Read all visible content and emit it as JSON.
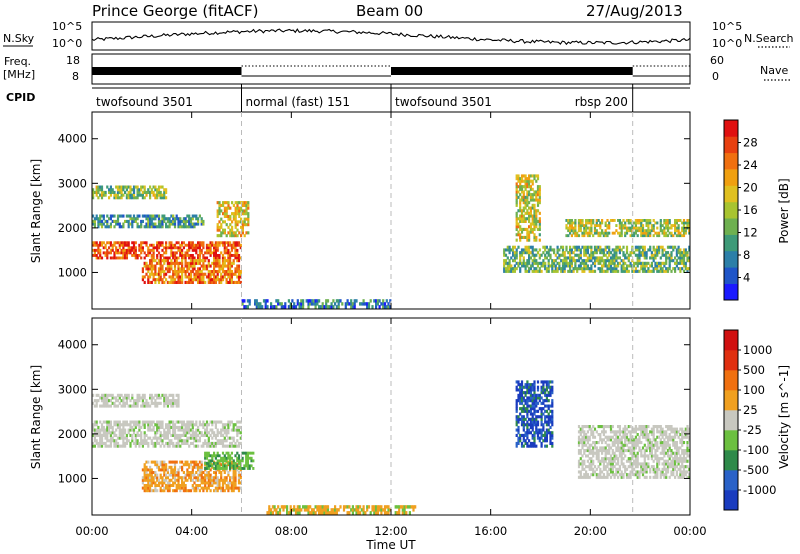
{
  "header": {
    "station": "Prince George (fitACF)",
    "beam": "Beam 00",
    "date": "27/Aug/2013"
  },
  "left_labels": {
    "nsky": "N.Sky",
    "freq": "Freq.",
    "freq_unit": "[MHz]",
    "cpid": "CPID"
  },
  "right_labels": {
    "nsearch": "N.Search",
    "nave": "Nave"
  },
  "nsky_ticks": {
    "left_top": "10^5",
    "left_bottom": "10^0",
    "right_top": "10^5",
    "right_bottom": "10^0"
  },
  "freq_ticks": {
    "left_top": "18",
    "left_bottom": "8",
    "right_top": "60",
    "right_bottom": "0"
  },
  "cpid_segments": [
    {
      "label": "twofsound 3501",
      "start": 0.0,
      "end": 6.0
    },
    {
      "label": "normal (fast) 151",
      "start": 6.0,
      "end": 12.0
    },
    {
      "label": "twofsound 3501",
      "start": 12.0,
      "end": 21.7
    },
    {
      "label": "rbsp 200",
      "start": 21.7,
      "end": 24.0
    }
  ],
  "chart_data": [
    {
      "type": "heatmap",
      "name": "power",
      "ylabel": "Slant Range [km]",
      "yticks": [
        1000,
        2000,
        3000,
        4000
      ],
      "ylim": [
        180,
        4600
      ],
      "xlim": [
        0,
        24
      ],
      "colorbar": {
        "label": "Power [dB]",
        "ticks": [
          "4",
          "8",
          "12",
          "16",
          "20",
          "24",
          "28"
        ],
        "colors": [
          "#1a1aff",
          "#1f55c8",
          "#2c7fa8",
          "#3e9a78",
          "#6eb050",
          "#a8c430",
          "#e0c020",
          "#f0a010",
          "#f07010",
          "#e84010",
          "#e01010"
        ]
      },
      "echo_bands": [
        {
          "t0": 0.0,
          "t1": 3.0,
          "r0": 2650,
          "r1": 2950,
          "level": 0.45
        },
        {
          "t0": 0.0,
          "t1": 4.5,
          "r0": 2000,
          "r1": 2300,
          "level": 0.3
        },
        {
          "t0": 0.0,
          "t1": 6.0,
          "r0": 1300,
          "r1": 1700,
          "level": 0.85
        },
        {
          "t0": 2.0,
          "t1": 6.0,
          "r0": 750,
          "r1": 1300,
          "level": 0.75
        },
        {
          "t0": 5.0,
          "t1": 6.3,
          "r0": 1800,
          "r1": 2600,
          "level": 0.6
        },
        {
          "t0": 17.0,
          "t1": 18.0,
          "r0": 1700,
          "r1": 3200,
          "level": 0.55
        },
        {
          "t0": 16.5,
          "t1": 24.0,
          "r0": 1000,
          "r1": 1600,
          "level": 0.4
        },
        {
          "t0": 19.0,
          "t1": 24.0,
          "r0": 1800,
          "r1": 2200,
          "level": 0.5
        },
        {
          "t0": 6.0,
          "t1": 12.0,
          "r0": 200,
          "r1": 400,
          "level": 0.25
        }
      ]
    },
    {
      "type": "heatmap",
      "name": "velocity",
      "ylabel": "Slant Range [km]",
      "xlabel": "Time UT",
      "xticks": [
        "00:00",
        "04:00",
        "08:00",
        "12:00",
        "16:00",
        "20:00",
        "00:00"
      ],
      "yticks": [
        1000,
        2000,
        3000,
        4000
      ],
      "ylim": [
        180,
        4600
      ],
      "xlim": [
        0,
        24
      ],
      "colorbar": {
        "label": "Velocity [m s^-1]",
        "ticks": [
          "1000",
          "500",
          "100",
          "25",
          "-25",
          "-100",
          "-500",
          "-1000"
        ],
        "colors": [
          "#1a3cbf",
          "#2a62c8",
          "#2e8a4a",
          "#6cc040",
          "#c8c8c0",
          "#f0a020",
          "#f07010",
          "#e03010",
          "#d01010"
        ]
      },
      "echo_bands": [
        {
          "t0": 0.0,
          "t1": 3.5,
          "r0": 2600,
          "r1": 2900,
          "kind": "ground"
        },
        {
          "t0": 0.0,
          "t1": 6.0,
          "r0": 1700,
          "r1": 2300,
          "kind": "ground"
        },
        {
          "t0": 2.0,
          "t1": 6.0,
          "r0": 700,
          "r1": 1400,
          "kind": "neg"
        },
        {
          "t0": 4.5,
          "t1": 6.5,
          "r0": 1200,
          "r1": 1600,
          "kind": "pos"
        },
        {
          "t0": 17.0,
          "t1": 18.5,
          "r0": 1700,
          "r1": 3200,
          "kind": "pos_strong"
        },
        {
          "t0": 19.5,
          "t1": 24.0,
          "r0": 1000,
          "r1": 2200,
          "kind": "ground"
        },
        {
          "t0": 7.0,
          "t1": 13.0,
          "r0": 200,
          "r1": 400,
          "kind": "neg_weak"
        }
      ]
    }
  ]
}
